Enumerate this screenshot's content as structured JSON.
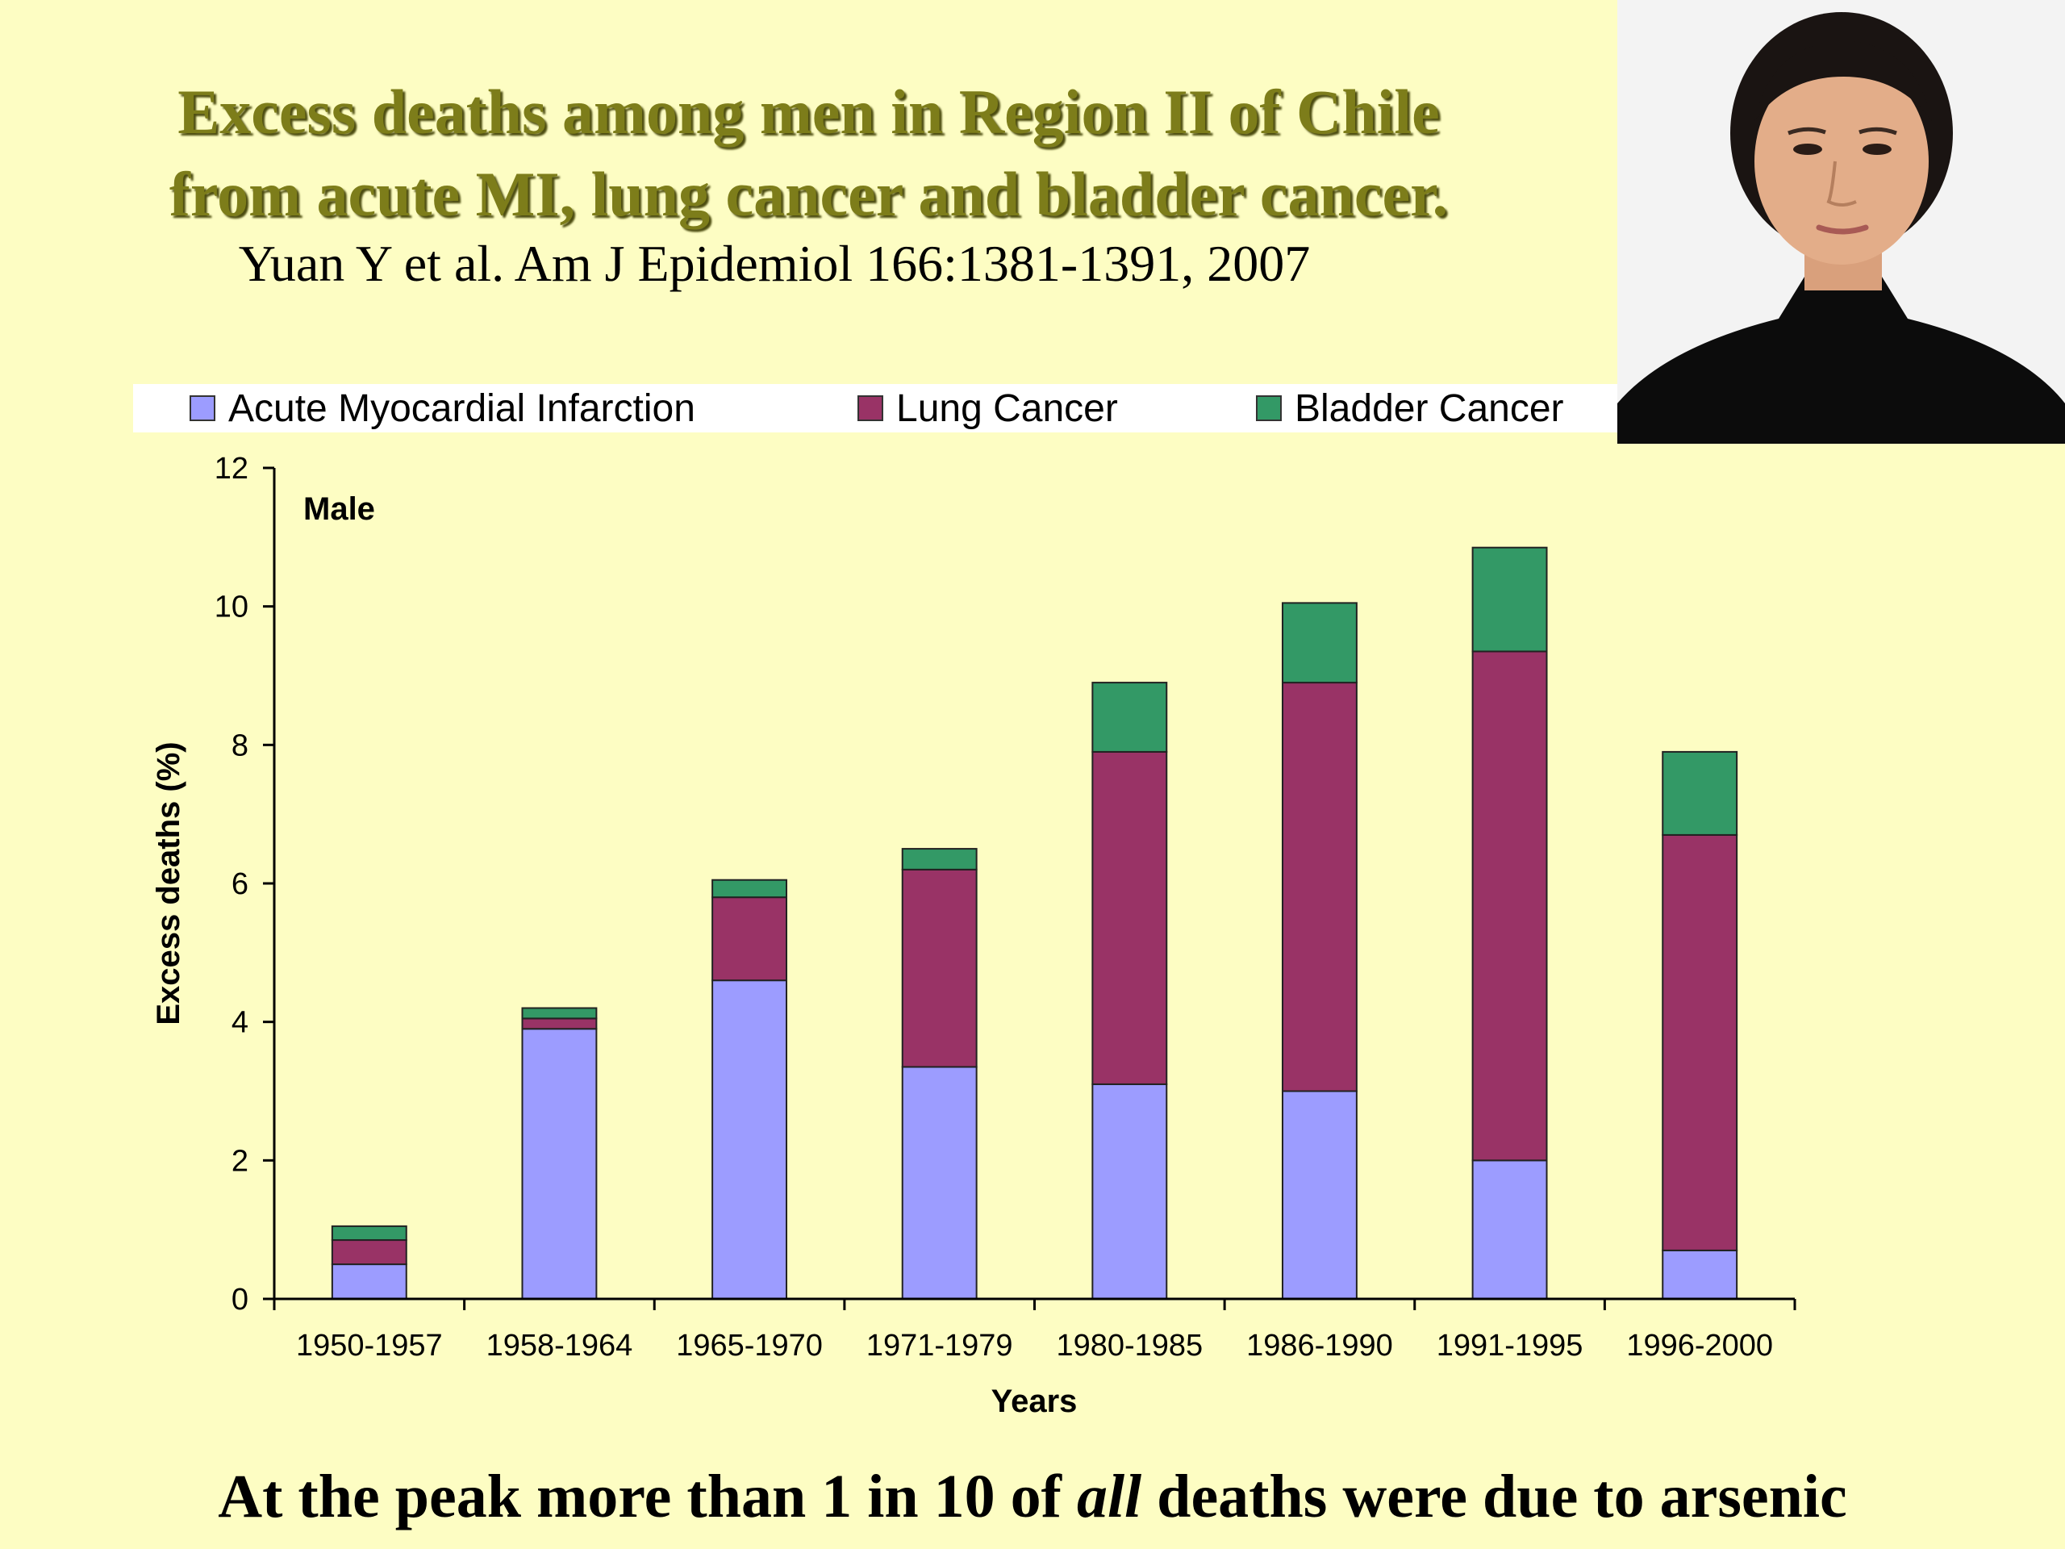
{
  "slide": {
    "title_line1": "Excess deaths among men in Region II of Chile",
    "title_line2": "from acute MI, lung cancer and bladder cancer.",
    "citation": "Yuan Y et al. Am J Epidemiol 166:1381-1391, 2007",
    "footer_pre": "At the peak more than 1 in 10 of ",
    "footer_em": "all",
    "footer_post": " deaths were due to arsenic"
  },
  "chart_data": {
    "type": "bar",
    "stacked": true,
    "panel_label": "Male",
    "xlabel": "Years",
    "ylabel": "Excess deaths (%)",
    "ylim": [
      0,
      12
    ],
    "yticks": [
      0,
      2,
      4,
      6,
      8,
      10,
      12
    ],
    "grid": false,
    "legend_position": "top",
    "categories": [
      "1950-1957",
      "1958-1964",
      "1965-1970",
      "1971-1979",
      "1980-1985",
      "1986-1990",
      "1991-1995",
      "1996-2000"
    ],
    "series": [
      {
        "name": "Acute Myocardial Infarction",
        "color": "#9c9cff",
        "values": [
          0.5,
          3.9,
          4.6,
          3.35,
          3.1,
          3.0,
          2.0,
          0.7
        ]
      },
      {
        "name": "Lung Cancer",
        "color": "#993366",
        "values": [
          0.35,
          0.15,
          1.2,
          2.85,
          4.8,
          5.9,
          7.35,
          6.0
        ]
      },
      {
        "name": "Bladder Cancer",
        "color": "#339966",
        "values": [
          0.2,
          0.15,
          0.25,
          0.3,
          1.0,
          1.15,
          1.5,
          1.2
        ]
      }
    ]
  }
}
